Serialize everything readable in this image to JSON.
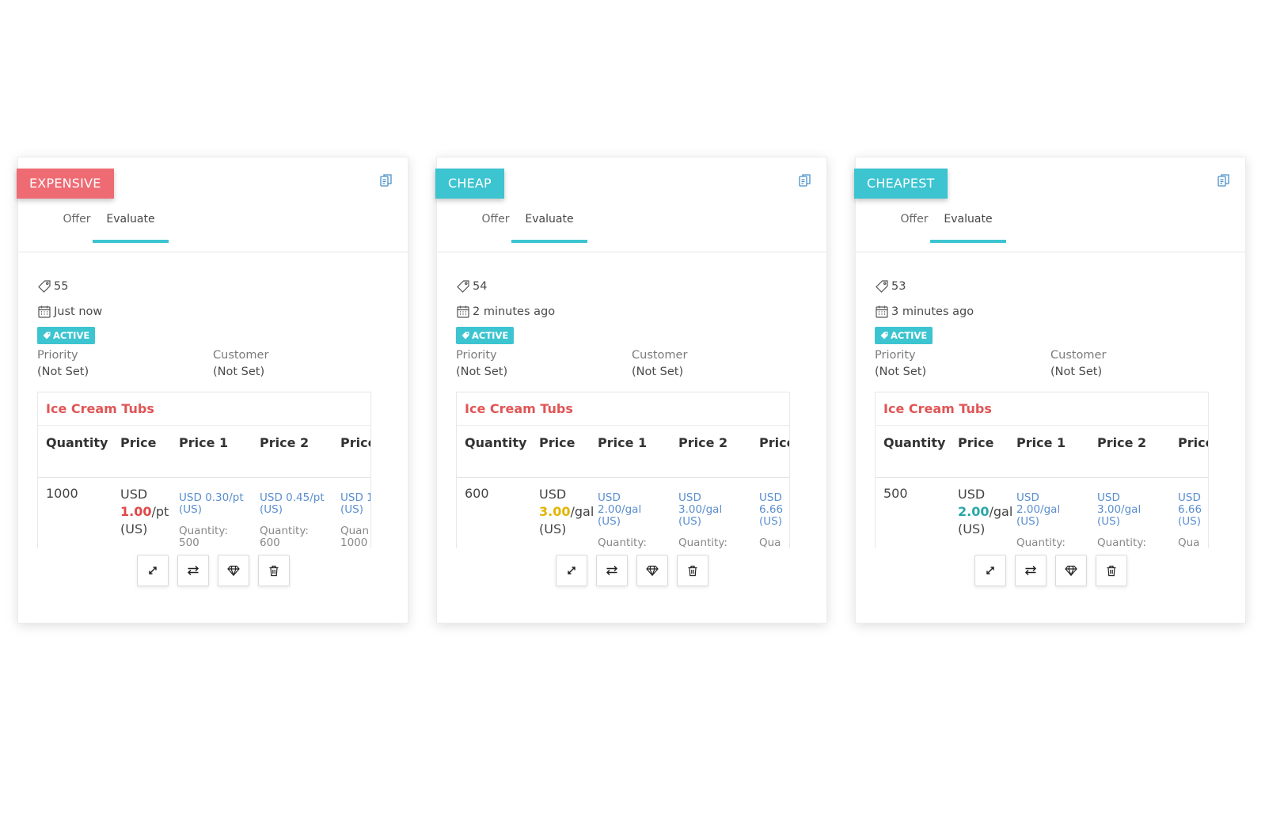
{
  "colors": {
    "accent": "#3cc4d0",
    "expensive": "#ef6b73",
    "title_red": "#e05555",
    "price_red": "#e04848",
    "price_yellow": "#e3b400",
    "price_green": "#2aa7a8"
  },
  "tabs": {
    "offer_label": "Offer",
    "evaluate_label": "Evaluate"
  },
  "labels": {
    "priority": "Priority",
    "customer": "Customer",
    "status": "ACTIVE",
    "col_quantity": "Quantity",
    "col_price": "Price",
    "col_price1": "Price 1",
    "col_price2": "Price 2",
    "col_price3": "Price"
  },
  "icons": {
    "copy": "copy-icon",
    "tag": "tag-icon",
    "calendar": "calendar-icon",
    "expand": "expand-icon",
    "swap": "swap-icon",
    "diamond": "diamond-icon",
    "trash": "trash-icon"
  },
  "cards": [
    {
      "ribbon": "EXPENSIVE",
      "ribbon_color": "#ef6b73",
      "id": "55",
      "time": "Just now",
      "priority": "(Not Set)",
      "customer": "(Not Set)",
      "product": "Ice Cream Tubs",
      "row": {
        "quantity": "1000",
        "currency": "USD",
        "amount": "1.00",
        "amount_color": "#e04848",
        "unit": "/pt",
        "unit_note": "(US)",
        "tiers": [
          {
            "line1": "USD 0.30/pt",
            "line2": "(US)",
            "line3": "",
            "q_label": "Quantity:",
            "q_value": "500"
          },
          {
            "line1": "USD 0.45/pt",
            "line2": "(US)",
            "line3": "",
            "q_label": "Quantity:",
            "q_value": "600"
          },
          {
            "line1": "USD 1",
            "line2": "(US)",
            "line3": "",
            "q_label": "Quan",
            "q_value": "1000"
          }
        ]
      }
    },
    {
      "ribbon": "CHEAP",
      "ribbon_color": "#3cc4d0",
      "id": "54",
      "time": "2 minutes ago",
      "priority": "(Not Set)",
      "customer": "(Not Set)",
      "product": "Ice Cream Tubs",
      "row": {
        "quantity": "600",
        "currency": "USD",
        "amount": "3.00",
        "amount_color": "#e3b400",
        "unit": "/gal",
        "unit_note": "(US)",
        "tiers": [
          {
            "line1": "USD",
            "line2": "2.00/gal",
            "line3": "(US)",
            "q_label": "Quantity:",
            "q_value": ""
          },
          {
            "line1": "USD",
            "line2": "3.00/gal",
            "line3": "(US)",
            "q_label": "Quantity:",
            "q_value": ""
          },
          {
            "line1": "USD",
            "line2": "6.66",
            "line3": "(US)",
            "q_label": "Qua",
            "q_value": ""
          }
        ]
      }
    },
    {
      "ribbon": "CHEAPEST",
      "ribbon_color": "#3cc4d0",
      "id": "53",
      "time": "3 minutes ago",
      "priority": "(Not Set)",
      "customer": "(Not Set)",
      "product": "Ice Cream Tubs",
      "row": {
        "quantity": "500",
        "currency": "USD",
        "amount": "2.00",
        "amount_color": "#2aa7a8",
        "unit": "/gal",
        "unit_note": "(US)",
        "tiers": [
          {
            "line1": "USD",
            "line2": "2.00/gal",
            "line3": "(US)",
            "q_label": "Quantity:",
            "q_value": ""
          },
          {
            "line1": "USD",
            "line2": "3.00/gal",
            "line3": "(US)",
            "q_label": "Quantity:",
            "q_value": ""
          },
          {
            "line1": "USD",
            "line2": "6.66",
            "line3": "(US)",
            "q_label": "Qua",
            "q_value": ""
          }
        ]
      }
    }
  ]
}
